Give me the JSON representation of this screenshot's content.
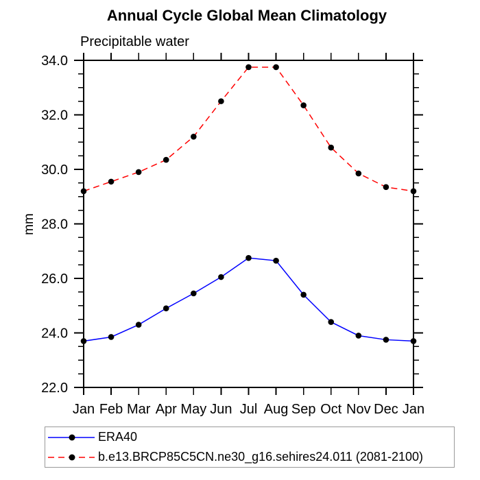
{
  "chart_data": {
    "type": "line",
    "title": "Annual Cycle Global Mean Climatology",
    "subtitle": "Precipitable water",
    "xlabel": "",
    "ylabel": "mm",
    "categories": [
      "Jan",
      "Feb",
      "Mar",
      "Apr",
      "May",
      "Jun",
      "Jul",
      "Aug",
      "Sep",
      "Oct",
      "Nov",
      "Dec",
      "Jan"
    ],
    "ylim": [
      22.0,
      34.0
    ],
    "y_major_step": 2.0,
    "y_minor_step": 0.5,
    "y_tick_label_format": "one_decimal",
    "grid": false,
    "legend_position": "bottom-left",
    "series": [
      {
        "name": "ERA40",
        "color": "#0000ff",
        "style": "solid",
        "marker": "filled-circle",
        "values": [
          23.7,
          23.85,
          24.3,
          24.9,
          25.45,
          26.05,
          26.75,
          26.65,
          25.4,
          24.4,
          23.9,
          23.75,
          23.7
        ]
      },
      {
        "name": "b.e13.BRCP85C5CN.ne30_g16.sehires24.011 (2081-2100)",
        "color": "#ff0000",
        "style": "dashed",
        "marker": "filled-circle",
        "values": [
          29.2,
          29.55,
          29.9,
          30.35,
          31.2,
          32.5,
          33.75,
          33.75,
          32.35,
          30.8,
          29.85,
          29.35,
          29.2
        ]
      }
    ]
  },
  "colors": {
    "axis": "#000000",
    "tick": "#000000",
    "text": "#000000",
    "marker": "#000000",
    "legend_border": "#999999",
    "background": "#ffffff"
  }
}
